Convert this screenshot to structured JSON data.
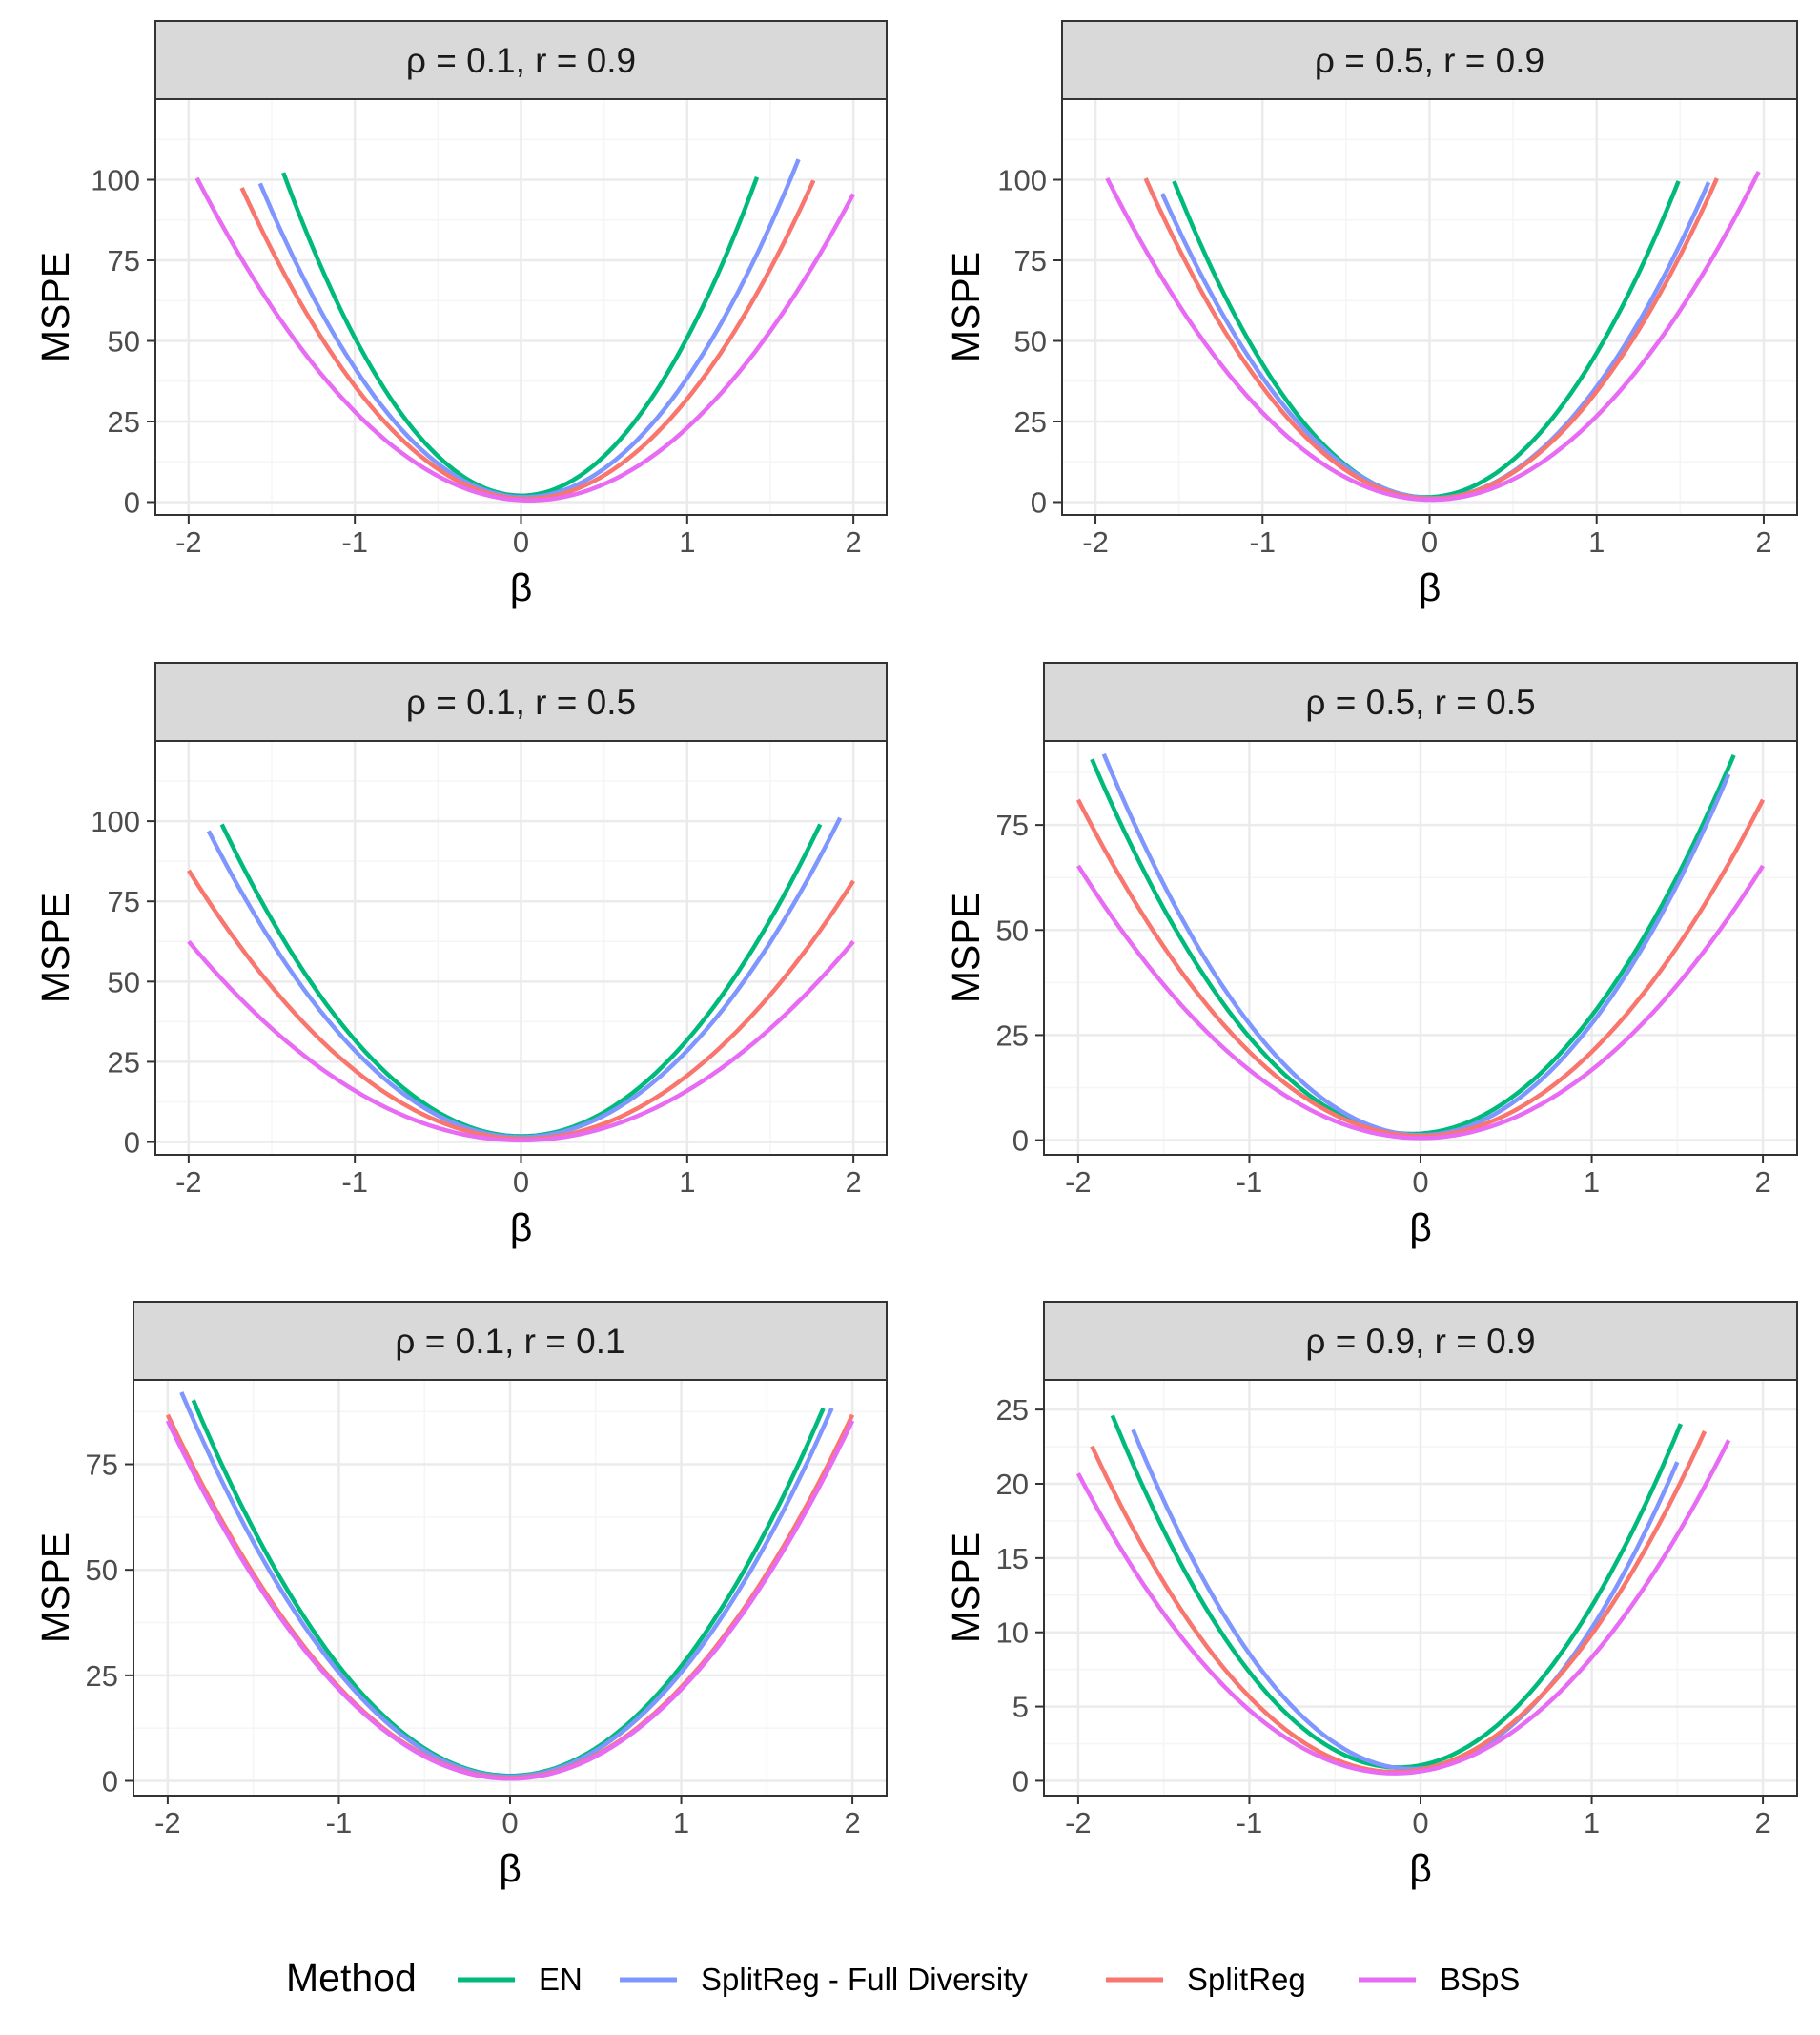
{
  "colors": {
    "EN": "#00BA7C",
    "SplitReg - Full Diversity": "#7F96FF",
    "SplitReg": "#F8766D",
    "BSpS": "#E76BF3",
    "strip_bg": "#D9D9D9",
    "grid_major": "#EBEBEB",
    "grid_minor": "#F5F5F5",
    "border": "#333333"
  },
  "legend": {
    "title": "Method",
    "items": [
      "EN",
      "SplitReg - Full Diversity",
      "SplitReg",
      "BSpS"
    ]
  },
  "chart_data": [
    {
      "type": "line",
      "title": "ρ = 0.1,  r = 0.9",
      "xlabel": "β",
      "ylabel": "MSPE",
      "xlim": [
        -2.2,
        2.2
      ],
      "ylim": [
        -4,
        125
      ],
      "xticks": [
        -2,
        -1,
        0,
        1,
        2
      ],
      "xtick_labels": [
        "-2",
        "-1",
        "0",
        "1",
        "2"
      ],
      "yticks": [
        0,
        25,
        50,
        75,
        100
      ],
      "ytick_labels": [
        "0",
        "25",
        "50",
        "75",
        "100"
      ],
      "series": [
        {
          "name": "EN",
          "vertex": 0.0,
          "min": 2.0,
          "curvature": 49.0,
          "x_range": [
            -1.43,
            1.42
          ]
        },
        {
          "name": "SplitReg - Full Diversity",
          "vertex": 0.02,
          "min": 1.5,
          "curvature": 38.5,
          "x_range": [
            -1.57,
            1.67
          ]
        },
        {
          "name": "SplitReg",
          "vertex": 0.03,
          "min": 1.0,
          "curvature": 33.0,
          "x_range": [
            -1.68,
            1.76
          ]
        },
        {
          "name": "BSpS",
          "vertex": 0.05,
          "min": 0.5,
          "curvature": 25.0,
          "x_range": [
            -1.95,
            2.0
          ]
        }
      ]
    },
    {
      "type": "line",
      "title": "ρ = 0.5,  r = 0.9",
      "xlabel": "β",
      "ylabel": "MSPE",
      "xlim": [
        -2.2,
        2.2
      ],
      "ylim": [
        -4,
        125
      ],
      "xticks": [
        -2,
        -1,
        0,
        1,
        2
      ],
      "xtick_labels": [
        "-2",
        "-1",
        "0",
        "1",
        "2"
      ],
      "yticks": [
        0,
        25,
        50,
        75,
        100
      ],
      "ytick_labels": [
        "0",
        "25",
        "50",
        "75",
        "100"
      ],
      "series": [
        {
          "name": "EN",
          "vertex": -0.02,
          "min": 1.5,
          "curvature": 43.0,
          "x_range": [
            -1.53,
            1.49
          ]
        },
        {
          "name": "SplitReg - Full Diversity",
          "vertex": 0.02,
          "min": 1.2,
          "curvature": 36.0,
          "x_range": [
            -1.6,
            1.67
          ]
        },
        {
          "name": "SplitReg",
          "vertex": 0.01,
          "min": 1.0,
          "curvature": 34.0,
          "x_range": [
            -1.7,
            1.72
          ]
        },
        {
          "name": "BSpS",
          "vertex": 0.01,
          "min": 0.7,
          "curvature": 26.5,
          "x_range": [
            -1.93,
            1.97
          ]
        }
      ]
    },
    {
      "type": "line",
      "title": "ρ = 0.1,  r = 0.5",
      "xlabel": "β",
      "ylabel": "MSPE",
      "xlim": [
        -2.2,
        2.2
      ],
      "ylim": [
        -4,
        125
      ],
      "xticks": [
        -2,
        -1,
        0,
        1,
        2
      ],
      "xtick_labels": [
        "-2",
        "-1",
        "0",
        "1",
        "2"
      ],
      "yticks": [
        0,
        25,
        50,
        75,
        100
      ],
      "ytick_labels": [
        "0",
        "25",
        "50",
        "75",
        "100"
      ],
      "series": [
        {
          "name": "EN",
          "vertex": 0.0,
          "min": 1.8,
          "curvature": 30.0,
          "x_range": [
            -1.8,
            1.8
          ]
        },
        {
          "name": "SplitReg - Full Diversity",
          "vertex": 0.0,
          "min": 1.5,
          "curvature": 27.0,
          "x_range": [
            -1.88,
            1.92
          ]
        },
        {
          "name": "SplitReg",
          "vertex": 0.02,
          "min": 1.0,
          "curvature": 20.5,
          "x_range": [
            -2.0,
            2.0
          ]
        },
        {
          "name": "BSpS",
          "vertex": 0.0,
          "min": 0.5,
          "curvature": 15.5,
          "x_range": [
            -2.0,
            2.0
          ]
        }
      ]
    },
    {
      "type": "line",
      "title": "ρ = 0.5,  r = 0.5",
      "xlabel": "β",
      "ylabel": "MSPE",
      "xlim": [
        -2.2,
        2.2
      ],
      "ylim": [
        -3.5,
        95
      ],
      "xticks": [
        -2,
        -1,
        0,
        1,
        2
      ],
      "xtick_labels": [
        "-2",
        "-1",
        "0",
        "1",
        "2"
      ],
      "yticks": [
        0,
        25,
        50,
        75
      ],
      "ytick_labels": [
        "0",
        "25",
        "50",
        "75"
      ],
      "series": [
        {
          "name": "EN",
          "vertex": -0.05,
          "min": 1.5,
          "curvature": 25.5,
          "x_range": [
            -1.92,
            1.83
          ]
        },
        {
          "name": "SplitReg - Full Diversity",
          "vertex": 0.0,
          "min": 1.2,
          "curvature": 26.5,
          "x_range": [
            -1.85,
            1.8
          ]
        },
        {
          "name": "SplitReg",
          "vertex": 0.0,
          "min": 1.0,
          "curvature": 20.0,
          "x_range": [
            -2.0,
            2.0
          ]
        },
        {
          "name": "BSpS",
          "vertex": 0.0,
          "min": 0.5,
          "curvature": 16.2,
          "x_range": [
            -2.0,
            2.0
          ]
        }
      ]
    },
    {
      "type": "line",
      "title": "ρ = 0.1,  r = 0.1",
      "xlabel": "β",
      "ylabel": "MSPE",
      "xlim": [
        -2.2,
        2.2
      ],
      "ylim": [
        -3.5,
        95
      ],
      "xticks": [
        -2,
        -1,
        0,
        1,
        2
      ],
      "xtick_labels": [
        "-2",
        "-1",
        "0",
        "1",
        "2"
      ],
      "yticks": [
        0,
        25,
        50,
        75
      ],
      "ytick_labels": [
        "0",
        "25",
        "50",
        "75"
      ],
      "series": [
        {
          "name": "EN",
          "vertex": 0.0,
          "min": 1.2,
          "curvature": 26.0,
          "x_range": [
            -1.85,
            1.83
          ]
        },
        {
          "name": "SplitReg - Full Diversity",
          "vertex": 0.0,
          "min": 1.0,
          "curvature": 24.7,
          "x_range": [
            -1.92,
            1.88
          ]
        },
        {
          "name": "SplitReg",
          "vertex": 0.0,
          "min": 0.7,
          "curvature": 21.5,
          "x_range": [
            -2.0,
            2.0
          ]
        },
        {
          "name": "BSpS",
          "vertex": 0.0,
          "min": 0.5,
          "curvature": 21.2,
          "x_range": [
            -2.0,
            2.0
          ]
        }
      ]
    },
    {
      "type": "line",
      "title": "ρ = 0.9,  r = 0.9",
      "xlabel": "β",
      "ylabel": "MSPE",
      "xlim": [
        -2.2,
        2.2
      ],
      "ylim": [
        -1,
        27
      ],
      "xticks": [
        -2,
        -1,
        0,
        1,
        2
      ],
      "xtick_labels": [
        "-2",
        "-1",
        "0",
        "1",
        "2"
      ],
      "yticks": [
        0,
        5,
        10,
        15,
        20,
        25
      ],
      "ytick_labels": [
        "0",
        "5",
        "10",
        "15",
        "20",
        "25"
      ],
      "series": [
        {
          "name": "EN",
          "vertex": -0.13,
          "min": 0.9,
          "curvature": 8.5,
          "x_range": [
            -1.8,
            1.52
          ]
        },
        {
          "name": "SplitReg - Full Diversity",
          "vertex": -0.05,
          "min": 0.8,
          "curvature": 8.6,
          "x_range": [
            -1.68,
            1.5
          ]
        },
        {
          "name": "SplitReg",
          "vertex": -0.15,
          "min": 0.6,
          "curvature": 7.0,
          "x_range": [
            -1.92,
            1.66
          ]
        },
        {
          "name": "BSpS",
          "vertex": -0.15,
          "min": 0.5,
          "curvature": 5.9,
          "x_range": [
            -2.0,
            1.8
          ]
        }
      ]
    }
  ]
}
